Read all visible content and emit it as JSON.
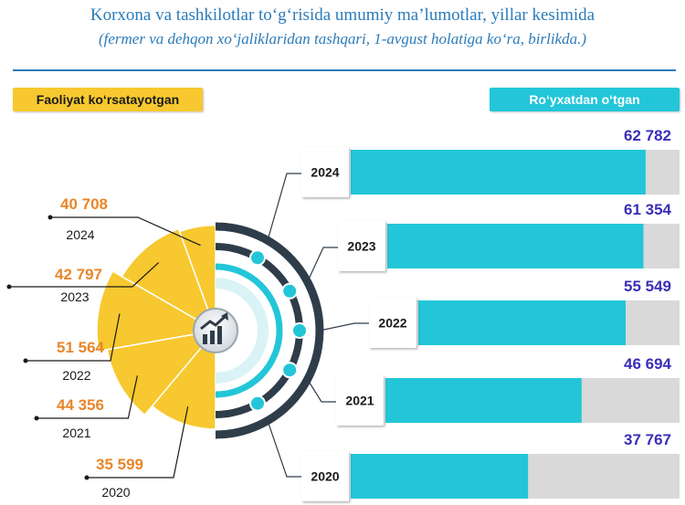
{
  "header": {
    "title": "Korxona va tashkilotlar to‘g‘risida umumiy ma’lumotlar, yillar kesimida",
    "subtitle": "(fermer va dehqon xo‘jaliklaridan tashqari, 1-avgust holatiga ko‘ra, birlikda.)"
  },
  "legend": {
    "active_label": "Faoliyat ko‘rsatayotgan",
    "registered_label": "Ro‘yxatdan o‘tgan"
  },
  "colors": {
    "accent_blue": "#2b7bb9",
    "active_yellow": "#f7c82f",
    "registered_cyan": "#23c6d8",
    "bar_track": "#d9d9d9",
    "registered_value_text": "#3a2eb8",
    "active_value_text": "#e8862a"
  },
  "center_icon": "growth-chart-icon",
  "chart_data": [
    {
      "type": "bar",
      "orientation": "horizontal",
      "categories": [
        "2024",
        "2023",
        "2022",
        "2021",
        "2020"
      ],
      "series": [
        {
          "name": "Ro‘yxatdan o‘tgan",
          "values": [
            62782,
            61354,
            55549,
            46694,
            37767
          ]
        }
      ],
      "value_labels": [
        "62 782",
        "61 354",
        "55 549",
        "46 694",
        "37 767"
      ],
      "xlim": [
        0,
        70000
      ]
    },
    {
      "type": "pie",
      "categories": [
        "2024",
        "2023",
        "2022",
        "2021",
        "2020"
      ],
      "series": [
        {
          "name": "Faoliyat ko‘rsatayotgan",
          "values": [
            40708,
            42797,
            51564,
            44356,
            35599
          ]
        }
      ],
      "value_labels": [
        "40 708",
        "42 797",
        "51 564",
        "44 356",
        "35 599"
      ]
    }
  ]
}
